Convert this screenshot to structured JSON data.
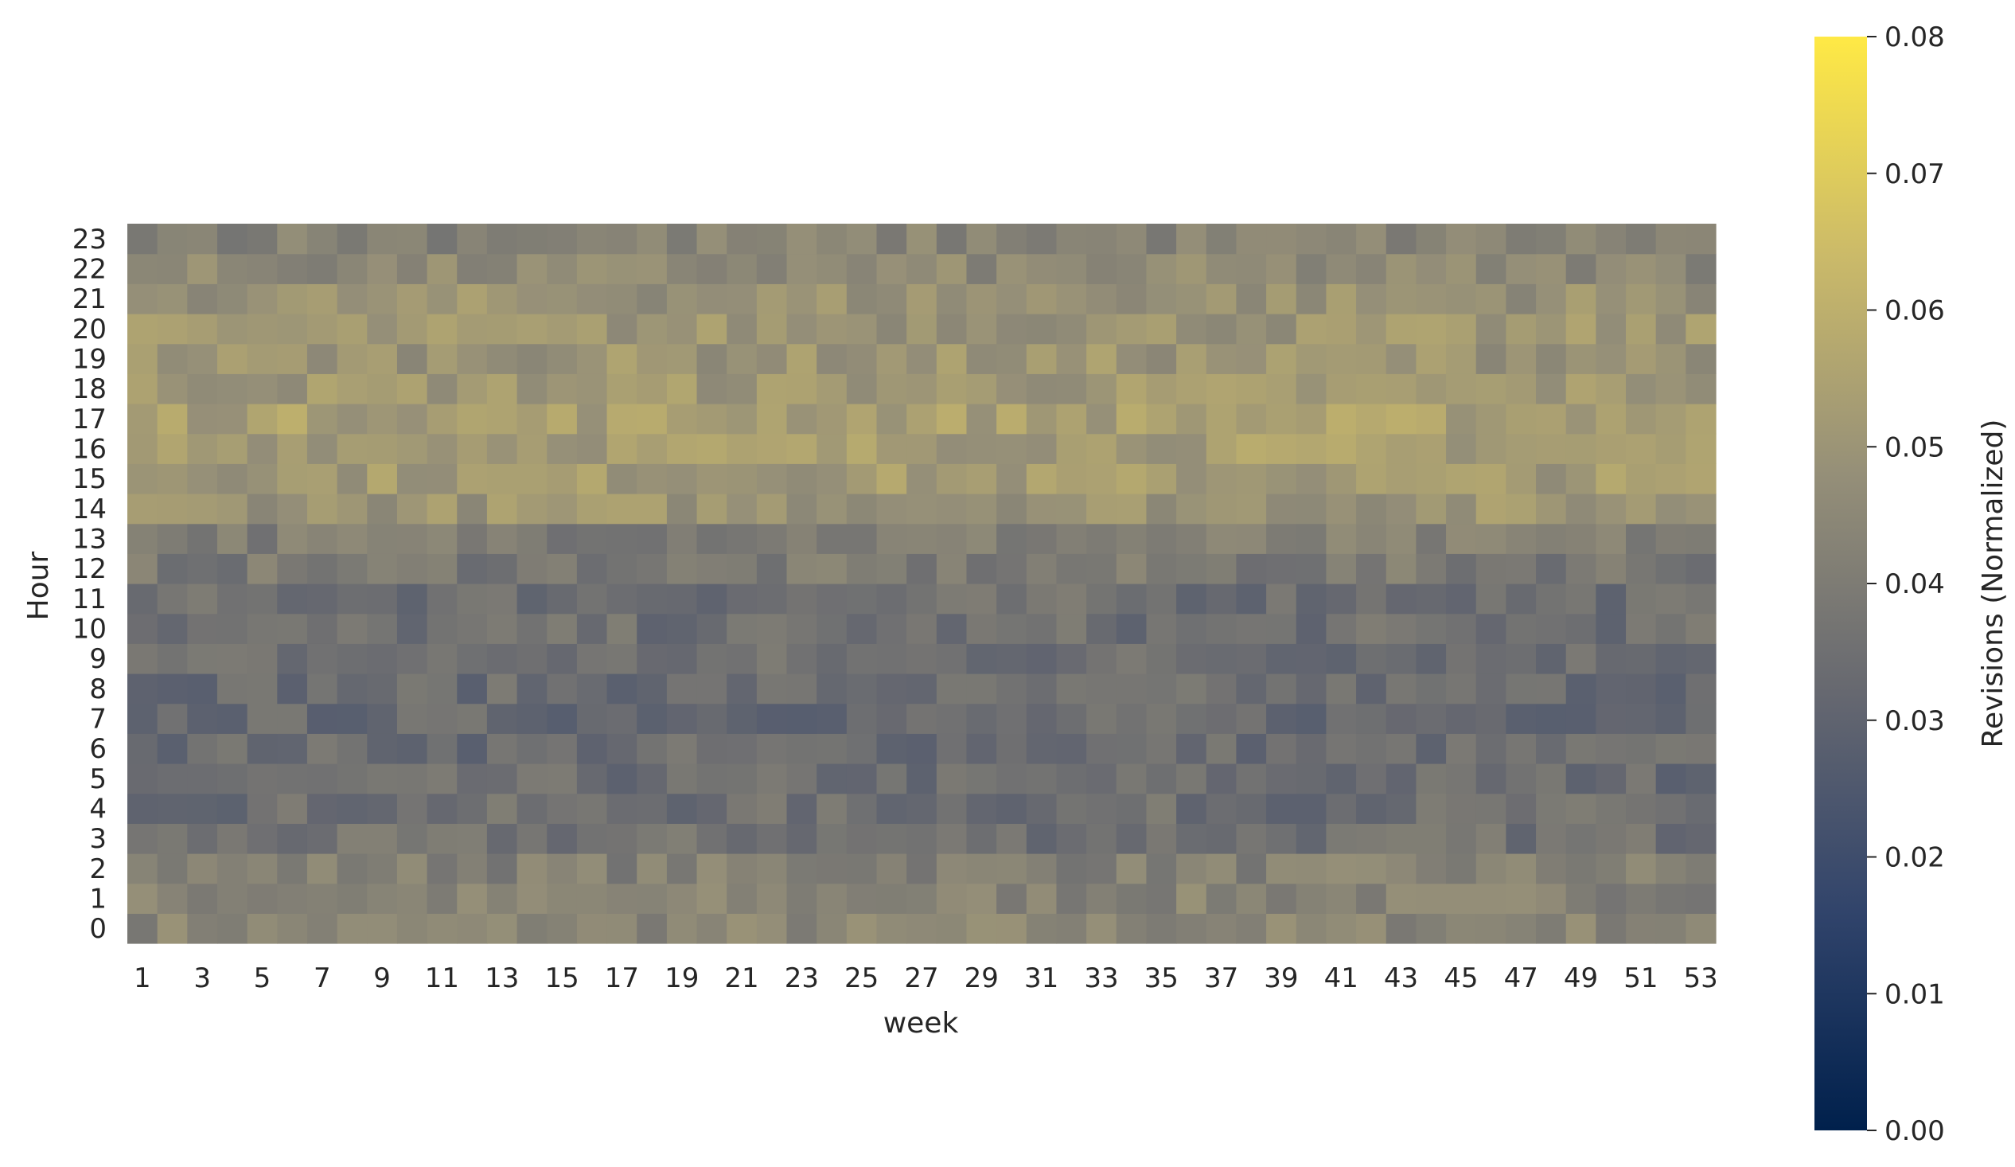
{
  "chart_data": {
    "type": "heatmap",
    "title": "",
    "xlabel": "week",
    "ylabel": "Hour",
    "x_tick_labels": [
      "1",
      "3",
      "5",
      "7",
      "9",
      "11",
      "13",
      "15",
      "17",
      "19",
      "21",
      "23",
      "25",
      "27",
      "29",
      "31",
      "33",
      "35",
      "37",
      "39",
      "41",
      "43",
      "45",
      "47",
      "49",
      "51",
      "53"
    ],
    "y_tick_labels": [
      "23",
      "22",
      "21",
      "20",
      "19",
      "18",
      "17",
      "16",
      "15",
      "14",
      "13",
      "12",
      "11",
      "10",
      "9",
      "8",
      "7",
      "6",
      "5",
      "4",
      "3",
      "2",
      "1",
      "0"
    ],
    "colorbar": {
      "label": "Revisions (Normalized)",
      "colormap": "cividis",
      "range": [
        0.0,
        0.08
      ],
      "tick_labels": [
        "0.00",
        "0.01",
        "0.02",
        "0.03",
        "0.04",
        "0.05",
        "0.06",
        "0.07",
        "0.08"
      ],
      "stops": [
        "#00204c",
        "#31446b",
        "#666870",
        "#958f78",
        "#cbba69",
        "#ffe945"
      ]
    },
    "x": [
      1,
      2,
      3,
      4,
      5,
      6,
      7,
      8,
      9,
      10,
      11,
      12,
      13,
      14,
      15,
      16,
      17,
      18,
      19,
      20,
      21,
      22,
      23,
      24,
      25,
      26,
      27,
      28,
      29,
      30,
      31,
      32,
      33,
      34,
      35,
      36,
      37,
      38,
      39,
      40,
      41,
      42,
      43,
      44,
      45,
      46,
      47,
      48,
      49,
      50,
      51,
      52,
      53
    ],
    "y": [
      0,
      1,
      2,
      3,
      4,
      5,
      6,
      7,
      8,
      9,
      10,
      11,
      12,
      13,
      14,
      15,
      16,
      17,
      18,
      19,
      20,
      21,
      22,
      23
    ],
    "hour_profile": [
      0.044,
      0.043,
      0.042,
      0.036,
      0.035,
      0.034,
      0.034,
      0.033,
      0.034,
      0.035,
      0.035,
      0.035,
      0.039,
      0.041,
      0.05,
      0.052,
      0.053,
      0.054,
      0.051,
      0.05,
      0.05,
      0.049,
      0.045,
      0.043
    ],
    "values_note_unused": "",
    "cell_variation_seed": 7
  }
}
